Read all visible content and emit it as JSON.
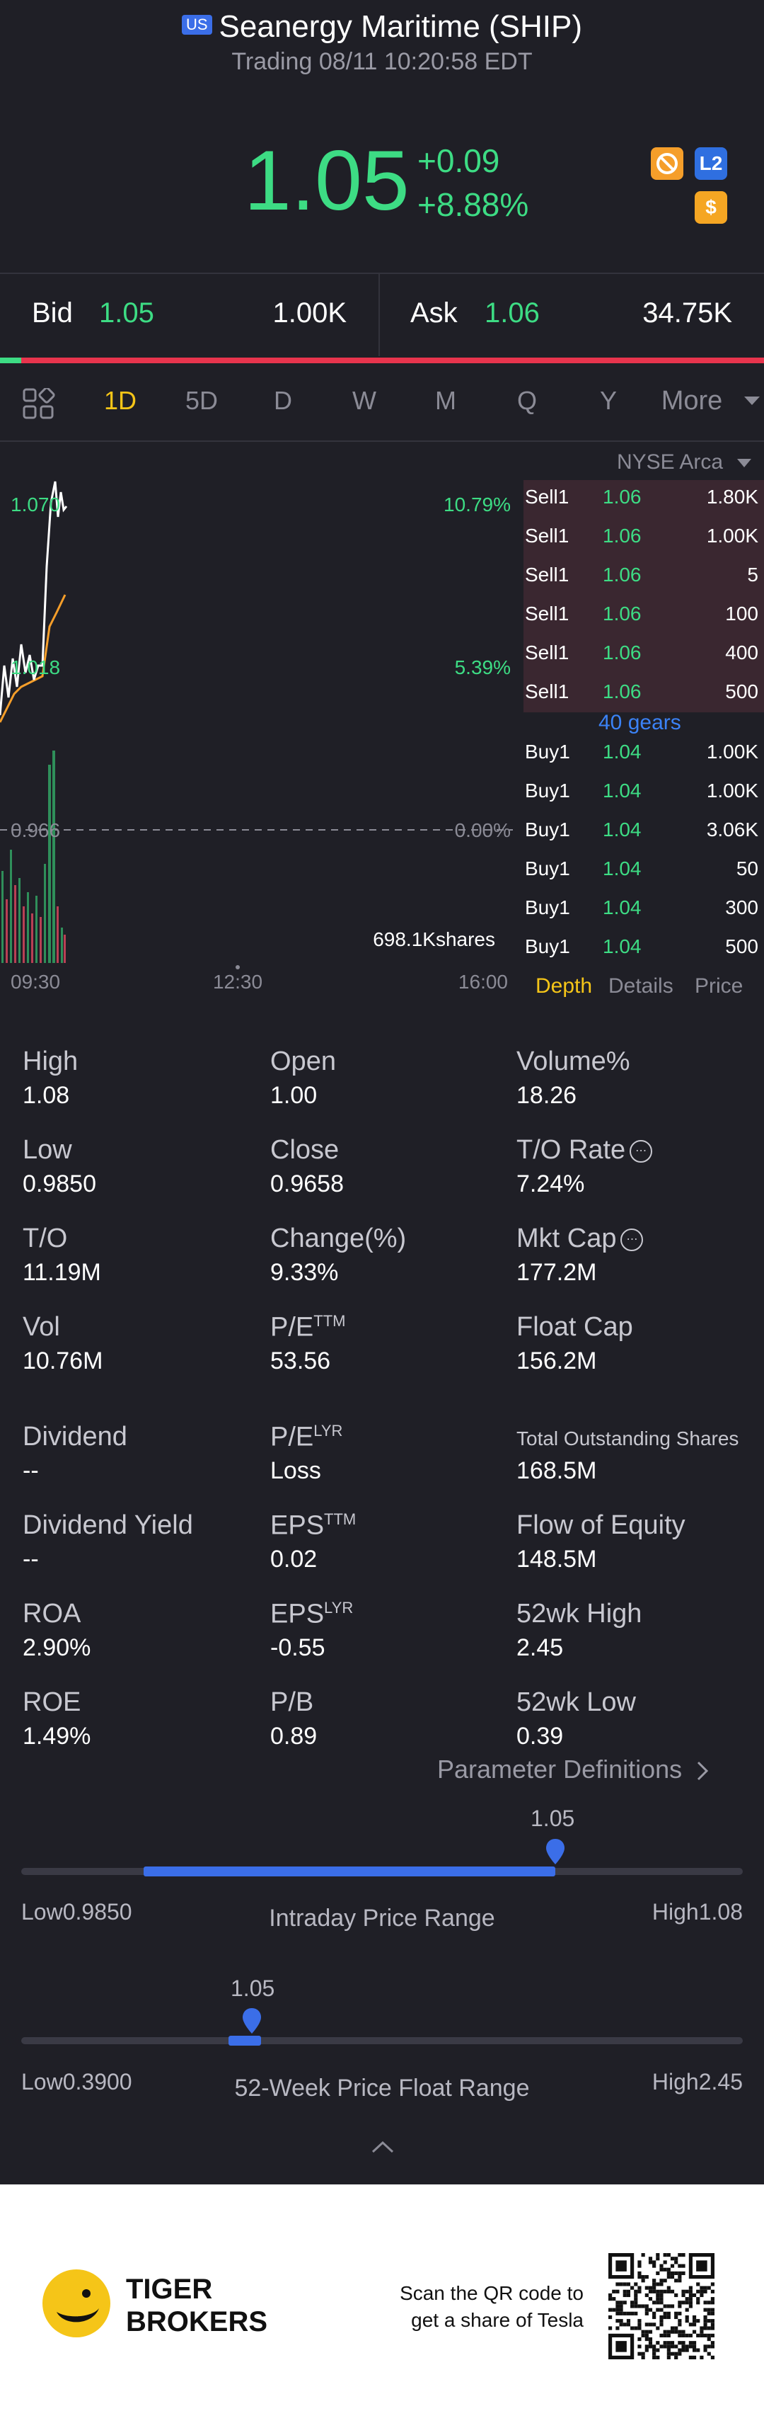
{
  "header": {
    "market_badge": "US",
    "title": "Seanergy Maritime (SHIP)",
    "subtitle": "Trading 08/11 10:20:58 EDT",
    "price": "1.05",
    "change": "+0.09",
    "change_pct": "+8.88%",
    "icons": [
      "no-sign-icon",
      "l2-icon",
      "dollar-icon"
    ],
    "l2_label": "L2",
    "dollar_label": "$"
  },
  "quote": {
    "bid_label": "Bid",
    "bid_price": "1.05",
    "bid_size": "1.00K",
    "ask_label": "Ask",
    "ask_price": "1.06",
    "ask_size": "34.75K"
  },
  "tabs": {
    "items": [
      "1D",
      "5D",
      "D",
      "W",
      "M",
      "Q",
      "Y"
    ],
    "active": "1D",
    "more": "More"
  },
  "chart": {
    "exchange": "NYSE Arca",
    "price_high_label": "1.070",
    "price_mid_label": "1.018",
    "price_base_label": "0.966",
    "pct_high_label": "10.79%",
    "pct_mid_label": "5.39%",
    "pct_base_label": "0.00%",
    "volume_label": "698.1Kshares",
    "time_labels": [
      "09:30",
      "12:30",
      "16:00"
    ]
  },
  "order_book": {
    "sells": [
      {
        "label": "Sell1",
        "price": "1.06",
        "size": "1.80K"
      },
      {
        "label": "Sell1",
        "price": "1.06",
        "size": "1.00K"
      },
      {
        "label": "Sell1",
        "price": "1.06",
        "size": "5"
      },
      {
        "label": "Sell1",
        "price": "1.06",
        "size": "100"
      },
      {
        "label": "Sell1",
        "price": "1.06",
        "size": "400"
      },
      {
        "label": "Sell1",
        "price": "1.06",
        "size": "500"
      }
    ],
    "gears": "40 gears",
    "buys": [
      {
        "label": "Buy1",
        "price": "1.04",
        "size": "1.00K"
      },
      {
        "label": "Buy1",
        "price": "1.04",
        "size": "1.00K"
      },
      {
        "label": "Buy1",
        "price": "1.04",
        "size": "3.06K"
      },
      {
        "label": "Buy1",
        "price": "1.04",
        "size": "50"
      },
      {
        "label": "Buy1",
        "price": "1.04",
        "size": "300"
      },
      {
        "label": "Buy1",
        "price": "1.04",
        "size": "500"
      }
    ],
    "tabs": [
      "Depth",
      "Details",
      "Price"
    ]
  },
  "stats": [
    {
      "label": "High",
      "value": "1.08"
    },
    {
      "label": "Open",
      "value": "1.00"
    },
    {
      "label": "Volume%",
      "value": "18.26"
    },
    {
      "label": "Low",
      "value": "0.9850"
    },
    {
      "label": "Close",
      "value": "0.9658"
    },
    {
      "label": "T/O Rate",
      "value": "7.24%"
    },
    {
      "label": "T/O",
      "value": "11.19M"
    },
    {
      "label": "Change(%)",
      "value": "9.33%"
    },
    {
      "label": "Mkt Cap",
      "value": "177.2M"
    },
    {
      "label": "Vol",
      "value": "10.76M"
    },
    {
      "label": "P/E",
      "sup": "TTM",
      "value": "53.56"
    },
    {
      "label": "Float Cap",
      "value": "156.2M"
    },
    {
      "label": "Dividend",
      "value": "--"
    },
    {
      "label": "P/E",
      "sup": "LYR",
      "value": "Loss"
    },
    {
      "label": "Total Outstanding Shares",
      "value": "168.5M"
    },
    {
      "label": "Dividend Yield",
      "value": "--"
    },
    {
      "label": "EPS",
      "sup": "TTM",
      "value": "0.02"
    },
    {
      "label": "Flow of Equity",
      "value": "148.5M"
    },
    {
      "label": "ROA",
      "value": "2.90%"
    },
    {
      "label": "EPS",
      "sup": "LYR",
      "value": "-0.55"
    },
    {
      "label": "52wk High",
      "value": "2.45"
    },
    {
      "label": "ROE",
      "value": "1.49%"
    },
    {
      "label": "P/B",
      "value": "0.89"
    },
    {
      "label": "52wk Low",
      "value": "0.39"
    }
  ],
  "param_link": "Parameter Definitions",
  "intraday_range": {
    "current": "1.05",
    "low": "Low0.9850",
    "high": "High1.08",
    "title": "Intraday Price Range",
    "fill_start_fraction": 0.17,
    "position_fraction": 0.74
  },
  "week52_range": {
    "current": "1.05",
    "low": "Low0.3900",
    "high": "High2.45",
    "title": "52-Week Price Float Range",
    "position_fraction": 0.32
  },
  "footer": {
    "brand_line1": "TIGER",
    "brand_line2": "BROKERS",
    "qr_line1": "Scan the QR code to",
    "qr_line2": "get a share of Tesla"
  }
}
